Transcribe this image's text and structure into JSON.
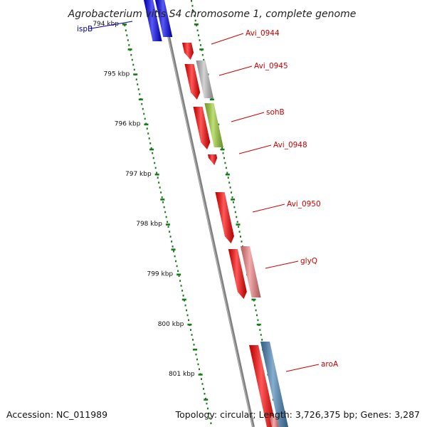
{
  "header": {
    "title": "Agrobacterium vitis S4 chromosome 1, complete genome"
  },
  "footer": {
    "accession": "Accession: NC_011989",
    "summary": "Topology: circular; Length: 3,726,375 bp; Genes: 3,287"
  },
  "colors": {
    "cds": "#ff0000",
    "cds_light": "#f08080",
    "cds_grey": "#bdbdbd",
    "cds_lime": "#9acd32",
    "cds_blue": "#4682b4",
    "highlight_blue": "#0000ee",
    "backbone": "#808080",
    "tick": "#1a7a1a",
    "label_red": "#cc0000",
    "label_blue": "#0000aa"
  },
  "scale_labels": [
    {
      "kbp": 794,
      "text": "794 kbp"
    },
    {
      "kbp": 795,
      "text": "795 kbp"
    },
    {
      "kbp": 796,
      "text": "796 kbp"
    },
    {
      "kbp": 797,
      "text": "797 kbp"
    },
    {
      "kbp": 798,
      "text": "798 kbp"
    },
    {
      "kbp": 799,
      "text": "799 kbp"
    },
    {
      "kbp": 800,
      "text": "800 kbp"
    },
    {
      "kbp": 801,
      "text": "801 kbp"
    }
  ],
  "gene_labels": [
    {
      "name": "ispB",
      "color": "label_blue"
    },
    {
      "name": "Avi_0944",
      "color": "label_red"
    },
    {
      "name": "Avi_0945",
      "color": "label_red"
    },
    {
      "name": "sohB",
      "color": "label_red"
    },
    {
      "name": "Avi_0948",
      "color": "label_red"
    },
    {
      "name": "Avi_0950",
      "color": "label_red"
    },
    {
      "name": "glyQ",
      "color": "label_red"
    },
    {
      "name": "aroA",
      "color": "label_red"
    }
  ]
}
